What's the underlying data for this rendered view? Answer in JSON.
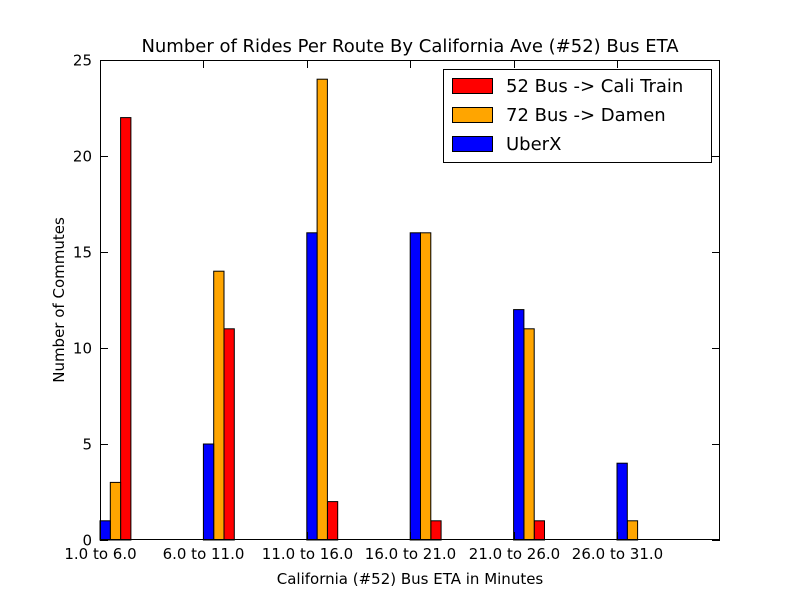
{
  "chart_data": {
    "type": "bar",
    "title": "Number of Rides Per Route By California Ave (#52) Bus ETA",
    "xlabel": "California (#52) Bus ETA in Minutes",
    "ylabel": "Number of Commutes",
    "categories": [
      "1.0 to 6.0",
      "6.0 to 11.0",
      "11.0 to 16.0",
      "16.0 to 21.0",
      "21.0 to 26.0",
      "26.0 to 31.0"
    ],
    "ylim": [
      0,
      25
    ],
    "yticks": [
      0,
      5,
      10,
      15,
      20,
      25
    ],
    "grid": false,
    "legend_position": "top-right",
    "series": [
      {
        "name": "52 Bus -> Cali Train",
        "color": "#ff0000",
        "values": [
          22,
          11,
          2,
          1,
          1,
          0
        ]
      },
      {
        "name": "72 Bus -> Damen",
        "color": "#ffa500",
        "values": [
          3,
          14,
          24,
          16,
          11,
          1
        ]
      },
      {
        "name": "UberX",
        "color": "#0000ff",
        "values": [
          1,
          5,
          16,
          16,
          12,
          4
        ]
      }
    ]
  }
}
